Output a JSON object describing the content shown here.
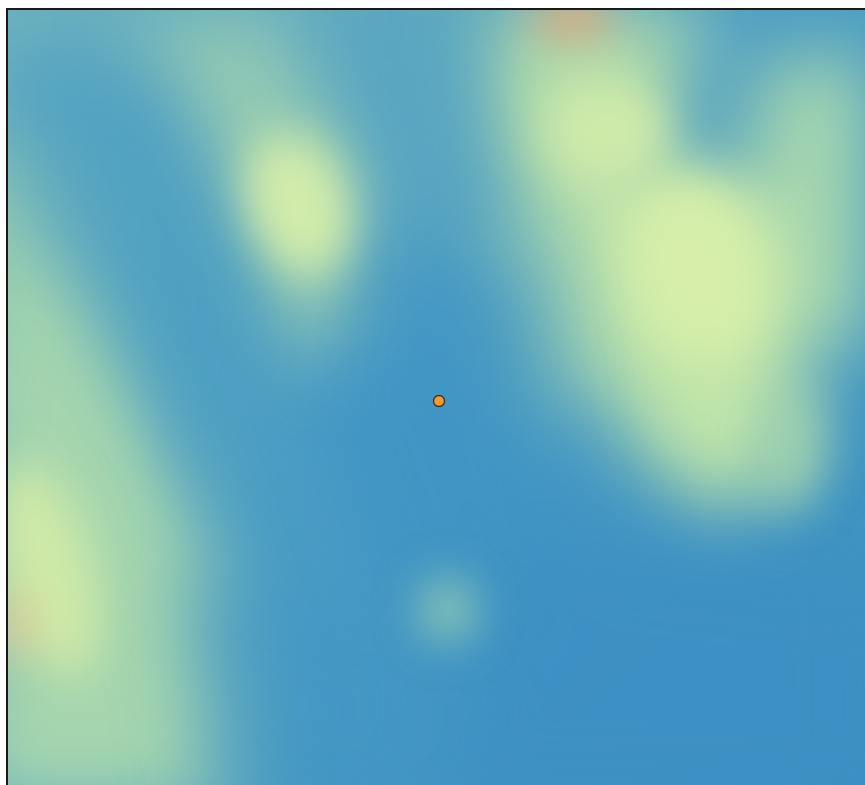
{
  "map": {
    "layer_type": "elevation-raster",
    "color_ramp": [
      "#3a8fc0",
      "#4e9fc1",
      "#6bb0bc",
      "#9cd0b0",
      "#c3e6a8",
      "#d8eeaa",
      "#f2c090",
      "#f4a16c"
    ],
    "marker": {
      "type": "point",
      "fill_color": "#f39a33",
      "stroke_color": "#3a2a10"
    }
  }
}
